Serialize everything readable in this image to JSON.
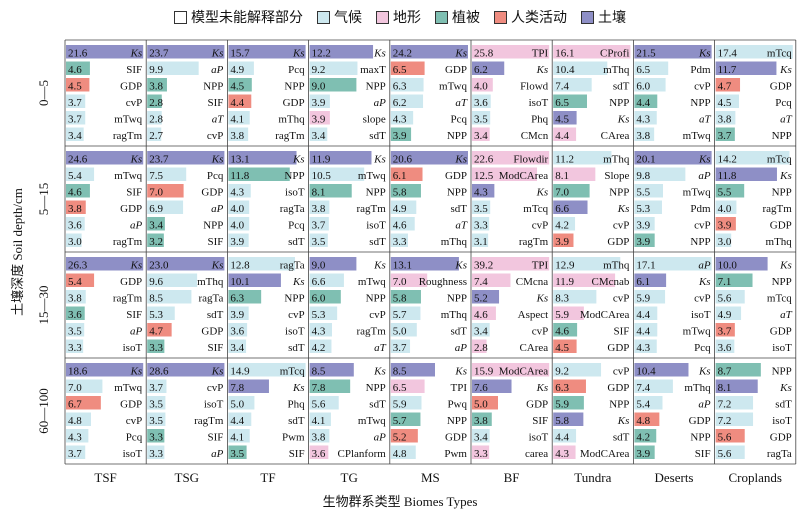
{
  "legend": [
    {
      "label": "模型未能解释部分",
      "color": "#ffffff"
    },
    {
      "label": "气候",
      "color": "#cde8ef"
    },
    {
      "label": "地形",
      "color": "#f2c6de"
    },
    {
      "label": "植被",
      "color": "#7fbfb2"
    },
    {
      "label": "人类活动",
      "color": "#ef8c80"
    },
    {
      "label": "土壤",
      "color": "#8e8fc6"
    }
  ],
  "chart_data": {
    "type": "bar",
    "ylabel": "土壤深度 Soil depth/cm",
    "xlabel": "生物群系类型 Biomes Types",
    "depths": [
      "0—5",
      "5—15",
      "15—30",
      "60—100"
    ],
    "biomes": [
      "TSF",
      "TSG",
      "TF",
      "TG",
      "MS",
      "BF",
      "Tundra",
      "Deserts",
      "Croplands"
    ],
    "colors": {
      "climate": "#cde8ef",
      "topo": "#f2c6de",
      "veg": "#7fbfb2",
      "human": "#ef8c80",
      "soil": "#8e8fc6"
    },
    "cells": [
      [
        [
          [
            21.6,
            "Ks",
            "soil"
          ],
          [
            4.6,
            "SIF",
            "veg"
          ],
          [
            4.5,
            "GDP",
            "human"
          ],
          [
            3.7,
            "cvP",
            "climate"
          ],
          [
            3.7,
            "mTwq",
            "climate"
          ],
          [
            3.4,
            "ragTm",
            "climate"
          ]
        ],
        [
          [
            23.7,
            "Ks",
            "soil"
          ],
          [
            9.9,
            "aP",
            "climate"
          ],
          [
            3.8,
            "NPP",
            "veg"
          ],
          [
            2.8,
            "SIF",
            "veg"
          ],
          [
            2.8,
            "aT",
            "climate"
          ],
          [
            2.7,
            "cvP",
            "climate"
          ]
        ],
        [
          [
            15.7,
            "Ks",
            "soil"
          ],
          [
            4.9,
            "Pcq",
            "climate"
          ],
          [
            4.5,
            "NPP",
            "veg"
          ],
          [
            4.4,
            "GDP",
            "human"
          ],
          [
            4.1,
            "mThq",
            "climate"
          ],
          [
            3.8,
            "ragTm",
            "climate"
          ]
        ],
        [
          [
            12.2,
            "Ks",
            "soil"
          ],
          [
            9.2,
            "maxT",
            "climate"
          ],
          [
            9.0,
            "NPP",
            "veg"
          ],
          [
            3.9,
            "aP",
            "climate"
          ],
          [
            3.9,
            "slope",
            "topo"
          ],
          [
            3.4,
            "sdT",
            "climate"
          ]
        ],
        [
          [
            24.2,
            "Ks",
            "soil"
          ],
          [
            6.5,
            "GDP",
            "human"
          ],
          [
            6.3,
            "mTwq",
            "climate"
          ],
          [
            6.2,
            "aT",
            "climate"
          ],
          [
            4.3,
            "Pcq",
            "climate"
          ],
          [
            3.9,
            "NPP",
            "veg"
          ]
        ],
        [
          [
            25.8,
            "TPI",
            "topo"
          ],
          [
            6.2,
            "Ks",
            "soil"
          ],
          [
            4.0,
            "Flowd",
            "topo"
          ],
          [
            3.6,
            "isoT",
            "climate"
          ],
          [
            3.5,
            "Phq",
            "climate"
          ],
          [
            3.4,
            "CMcn",
            "topo"
          ]
        ],
        [
          [
            16.1,
            "CProfi",
            "topo"
          ],
          [
            10.4,
            "mThq",
            "climate"
          ],
          [
            7.4,
            "sdT",
            "climate"
          ],
          [
            6.5,
            "NPP",
            "veg"
          ],
          [
            4.5,
            "Ks",
            "soil"
          ],
          [
            4.4,
            "CArea",
            "topo"
          ]
        ],
        [
          [
            21.5,
            "Ks",
            "soil"
          ],
          [
            6.5,
            "Pdm",
            "climate"
          ],
          [
            6.0,
            "cvP",
            "climate"
          ],
          [
            4.4,
            "NPP",
            "veg"
          ],
          [
            4.3,
            "aT",
            "climate"
          ],
          [
            3.8,
            "mTwq",
            "climate"
          ]
        ],
        [
          [
            17.4,
            "mTcq",
            "climate"
          ],
          [
            11.7,
            "Ks",
            "soil"
          ],
          [
            4.7,
            "GDP",
            "human"
          ],
          [
            4.5,
            "Pcq",
            "climate"
          ],
          [
            3.8,
            "aT",
            "climate"
          ],
          [
            3.7,
            "NPP",
            "veg"
          ]
        ]
      ],
      [
        [
          [
            24.6,
            "Ks",
            "soil"
          ],
          [
            5.4,
            "mTwq",
            "climate"
          ],
          [
            4.6,
            "SIF",
            "veg"
          ],
          [
            3.8,
            "GDP",
            "human"
          ],
          [
            3.6,
            "aP",
            "climate"
          ],
          [
            3.0,
            "ragTm",
            "climate"
          ]
        ],
        [
          [
            23.7,
            "Ks",
            "soil"
          ],
          [
            7.5,
            "Pcq",
            "climate"
          ],
          [
            7.0,
            "GDP",
            "human"
          ],
          [
            6.9,
            "aP",
            "climate"
          ],
          [
            3.4,
            "NPP",
            "veg"
          ],
          [
            3.2,
            "SIF",
            "veg"
          ]
        ],
        [
          [
            13.1,
            "Ks",
            "soil"
          ],
          [
            11.8,
            "NPP",
            "veg"
          ],
          [
            4.3,
            "isoT",
            "climate"
          ],
          [
            4.0,
            "ragTa",
            "climate"
          ],
          [
            4.0,
            "Pcq",
            "climate"
          ],
          [
            3.9,
            "sdT",
            "climate"
          ]
        ],
        [
          [
            11.9,
            "Ks",
            "soil"
          ],
          [
            10.5,
            "mTwq",
            "climate"
          ],
          [
            8.1,
            "NPP",
            "veg"
          ],
          [
            3.8,
            "ragTm",
            "climate"
          ],
          [
            3.7,
            "isoT",
            "climate"
          ],
          [
            3.5,
            "sdT",
            "climate"
          ]
        ],
        [
          [
            20.6,
            "Ks",
            "soil"
          ],
          [
            6.1,
            "GDP",
            "human"
          ],
          [
            5.8,
            "NPP",
            "veg"
          ],
          [
            4.9,
            "sdT",
            "climate"
          ],
          [
            4.6,
            "aT",
            "climate"
          ],
          [
            3.3,
            "mThq",
            "climate"
          ]
        ],
        [
          [
            22.6,
            "Flowdir",
            "topo"
          ],
          [
            12.5,
            "ModCArea",
            "topo"
          ],
          [
            4.3,
            "Ks",
            "soil"
          ],
          [
            3.5,
            "mTcq",
            "climate"
          ],
          [
            3.3,
            "cvP",
            "climate"
          ],
          [
            3.1,
            "ragTm",
            "climate"
          ]
        ],
        [
          [
            11.2,
            "mThq",
            "climate"
          ],
          [
            8.1,
            "Slope",
            "topo"
          ],
          [
            7.0,
            "NPP",
            "veg"
          ],
          [
            6.6,
            "Ks",
            "soil"
          ],
          [
            4.2,
            "cvP",
            "climate"
          ],
          [
            3.9,
            "GDP",
            "human"
          ]
        ],
        [
          [
            20.1,
            "Ks",
            "soil"
          ],
          [
            9.8,
            "aP",
            "climate"
          ],
          [
            5.5,
            "mTwq",
            "climate"
          ],
          [
            5.3,
            "Pdm",
            "climate"
          ],
          [
            3.9,
            "cvP",
            "climate"
          ],
          [
            3.9,
            "NPP",
            "veg"
          ]
        ],
        [
          [
            14.2,
            "mTcq",
            "climate"
          ],
          [
            11.8,
            "Ks",
            "soil"
          ],
          [
            5.5,
            "NPP",
            "veg"
          ],
          [
            4.0,
            "ragTm",
            "climate"
          ],
          [
            3.9,
            "GDP",
            "human"
          ],
          [
            3.0,
            "mThq",
            "climate"
          ]
        ]
      ],
      [
        [
          [
            26.3,
            "Ks",
            "soil"
          ],
          [
            5.4,
            "GDP",
            "human"
          ],
          [
            3.8,
            "ragTm",
            "climate"
          ],
          [
            3.6,
            "SIF",
            "veg"
          ],
          [
            3.5,
            "aP",
            "climate"
          ],
          [
            3.3,
            "isoT",
            "climate"
          ]
        ],
        [
          [
            23.0,
            "Ks",
            "soil"
          ],
          [
            9.6,
            "mThq",
            "climate"
          ],
          [
            8.5,
            "ragTa",
            "climate"
          ],
          [
            5.3,
            "sdT",
            "climate"
          ],
          [
            4.7,
            "GDP",
            "human"
          ],
          [
            3.3,
            "SIF",
            "veg"
          ]
        ],
        [
          [
            12.8,
            "ragTa",
            "climate"
          ],
          [
            10.1,
            "Ks",
            "soil"
          ],
          [
            6.3,
            "NPP",
            "veg"
          ],
          [
            3.9,
            "cvP",
            "climate"
          ],
          [
            3.6,
            "isoT",
            "climate"
          ],
          [
            3.4,
            "sdT",
            "climate"
          ]
        ],
        [
          [
            9.0,
            "Ks",
            "soil"
          ],
          [
            6.6,
            "mTwq",
            "climate"
          ],
          [
            6.0,
            "NPP",
            "veg"
          ],
          [
            5.3,
            "cvP",
            "climate"
          ],
          [
            4.3,
            "ragTm",
            "climate"
          ],
          [
            4.2,
            "aT",
            "climate"
          ]
        ],
        [
          [
            13.1,
            "Ks",
            "soil"
          ],
          [
            7.0,
            "Roughness",
            "topo"
          ],
          [
            5.8,
            "NPP",
            "veg"
          ],
          [
            5.7,
            "mThq",
            "climate"
          ],
          [
            5.0,
            "sdT",
            "climate"
          ],
          [
            3.7,
            "aP",
            "climate"
          ]
        ],
        [
          [
            39.2,
            "TPI",
            "topo"
          ],
          [
            7.4,
            "CMcna",
            "topo"
          ],
          [
            5.2,
            "Ks",
            "soil"
          ],
          [
            4.6,
            "Aspect",
            "topo"
          ],
          [
            3.4,
            "cvP",
            "climate"
          ],
          [
            2.8,
            "CArea",
            "topo"
          ]
        ],
        [
          [
            12.9,
            "mThq",
            "climate"
          ],
          [
            11.9,
            "CMcnab",
            "topo"
          ],
          [
            8.3,
            "cvP",
            "climate"
          ],
          [
            5.9,
            "ModCArea",
            "topo"
          ],
          [
            4.6,
            "SIF",
            "veg"
          ],
          [
            4.5,
            "GDP",
            "human"
          ]
        ],
        [
          [
            17.1,
            "aP",
            "climate"
          ],
          [
            6.1,
            "Ks",
            "soil"
          ],
          [
            5.9,
            "cvP",
            "climate"
          ],
          [
            4.4,
            "isoT",
            "climate"
          ],
          [
            4.4,
            "mTwq",
            "climate"
          ],
          [
            4.3,
            "Pcq",
            "climate"
          ]
        ],
        [
          [
            10.0,
            "Ks",
            "soil"
          ],
          [
            7.1,
            "NPP",
            "veg"
          ],
          [
            5.6,
            "mTcq",
            "climate"
          ],
          [
            4.9,
            "aT",
            "climate"
          ],
          [
            3.7,
            "GDP",
            "human"
          ],
          [
            3.6,
            "isoT",
            "climate"
          ]
        ]
      ],
      [
        [
          [
            18.6,
            "Ks",
            "soil"
          ],
          [
            7.0,
            "mTwq",
            "climate"
          ],
          [
            6.7,
            "GDP",
            "human"
          ],
          [
            4.8,
            "cvP",
            "climate"
          ],
          [
            4.3,
            "Pcq",
            "climate"
          ],
          [
            3.7,
            "isoT",
            "climate"
          ]
        ],
        [
          [
            28.6,
            "Ks",
            "soil"
          ],
          [
            3.7,
            "cvP",
            "climate"
          ],
          [
            3.5,
            "isoT",
            "climate"
          ],
          [
            3.5,
            "ragTm",
            "climate"
          ],
          [
            3.3,
            "SIF",
            "veg"
          ],
          [
            3.3,
            "aP",
            "climate"
          ]
        ],
        [
          [
            14.9,
            "mTcq",
            "climate"
          ],
          [
            7.8,
            "Ks",
            "soil"
          ],
          [
            5.0,
            "Phq",
            "climate"
          ],
          [
            4.4,
            "sdT",
            "climate"
          ],
          [
            4.1,
            "Pwm",
            "climate"
          ],
          [
            3.5,
            "SIF",
            "veg"
          ]
        ],
        [
          [
            8.5,
            "Ks",
            "soil"
          ],
          [
            7.8,
            "NPP",
            "veg"
          ],
          [
            5.6,
            "sdT",
            "climate"
          ],
          [
            4.1,
            "mTwq",
            "climate"
          ],
          [
            3.8,
            "aP",
            "climate"
          ],
          [
            3.6,
            "CPlanform",
            "topo"
          ]
        ],
        [
          [
            8.5,
            "Ks",
            "soil"
          ],
          [
            6.5,
            "TPI",
            "topo"
          ],
          [
            5.9,
            "Pwq",
            "climate"
          ],
          [
            5.7,
            "NPP",
            "veg"
          ],
          [
            5.2,
            "GDP",
            "human"
          ],
          [
            4.8,
            "Pwm",
            "climate"
          ]
        ],
        [
          [
            15.9,
            "ModCArea",
            "topo"
          ],
          [
            7.6,
            "Ks",
            "soil"
          ],
          [
            5.0,
            "GDP",
            "human"
          ],
          [
            3.8,
            "SIF",
            "veg"
          ],
          [
            3.4,
            "isoT",
            "climate"
          ],
          [
            3.3,
            "carea",
            "topo"
          ]
        ],
        [
          [
            9.2,
            "cvP",
            "climate"
          ],
          [
            6.3,
            "GDP",
            "human"
          ],
          [
            5.9,
            "NPP",
            "veg"
          ],
          [
            5.8,
            "Ks",
            "soil"
          ],
          [
            4.4,
            "sdT",
            "climate"
          ],
          [
            4.3,
            "ModCArea",
            "topo"
          ]
        ],
        [
          [
            10.4,
            "Ks",
            "soil"
          ],
          [
            7.4,
            "mThq",
            "climate"
          ],
          [
            5.4,
            "aP",
            "climate"
          ],
          [
            4.8,
            "GDP",
            "human"
          ],
          [
            4.2,
            "NPP",
            "veg"
          ],
          [
            3.9,
            "SIF",
            "veg"
          ]
        ],
        [
          [
            8.7,
            "NPP",
            "veg"
          ],
          [
            8.1,
            "Ks",
            "soil"
          ],
          [
            7.2,
            "sdT",
            "climate"
          ],
          [
            7.2,
            "isoT",
            "climate"
          ],
          [
            5.6,
            "GDP",
            "human"
          ],
          [
            5.6,
            "ragTa",
            "climate"
          ]
        ]
      ]
    ]
  }
}
